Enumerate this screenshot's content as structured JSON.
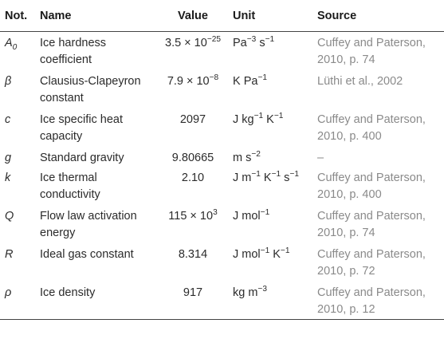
{
  "table": {
    "headers": {
      "notation": "Not.",
      "name": "Name",
      "value": "Value",
      "unit": "Unit",
      "source": "Source"
    },
    "rows": [
      {
        "symbol": {
          "base": "A",
          "sub": "0",
          "sup": ""
        },
        "name": [
          "Ice hardness",
          "coefficient"
        ],
        "value": {
          "base": "3.5 × 10",
          "sup": "−25"
        },
        "unit": [
          [
            "Pa",
            "−3"
          ],
          [
            " s",
            "−1"
          ]
        ],
        "source": [
          "Cuffey and Paterson,",
          "2010, p. 74"
        ]
      },
      {
        "symbol": {
          "base": "β",
          "sub": "",
          "sup": ""
        },
        "name": [
          "Clausius-Clapeyron",
          "constant"
        ],
        "value": {
          "base": "7.9 × 10",
          "sup": "−8"
        },
        "unit": [
          [
            "K Pa",
            "−1"
          ]
        ],
        "source": [
          "Lüthi et al., 2002"
        ]
      },
      {
        "symbol": {
          "base": "c",
          "sub": "",
          "sup": ""
        },
        "name": [
          "Ice specific heat",
          "capacity"
        ],
        "value": {
          "base": "2097",
          "sup": ""
        },
        "unit": [
          [
            "J kg",
            "−1"
          ],
          [
            " K",
            "−1"
          ]
        ],
        "source": [
          "Cuffey and Paterson,",
          "2010, p. 400"
        ]
      },
      {
        "symbol": {
          "base": "g",
          "sub": "",
          "sup": ""
        },
        "name": [
          "Standard gravity"
        ],
        "value": {
          "base": "9.80665",
          "sup": ""
        },
        "unit": [
          [
            "m s",
            "−2"
          ]
        ],
        "source": [
          "–"
        ]
      },
      {
        "symbol": {
          "base": "k",
          "sub": "",
          "sup": ""
        },
        "name": [
          "Ice thermal",
          "conductivity"
        ],
        "value": {
          "base": "2.10",
          "sup": ""
        },
        "unit": [
          [
            "J m",
            "−1"
          ],
          [
            " K",
            "−1"
          ],
          [
            " s",
            "−1"
          ]
        ],
        "source": [
          "Cuffey and Paterson,",
          "2010, p. 400"
        ]
      },
      {
        "symbol": {
          "base": "Q",
          "sub": "",
          "sup": ""
        },
        "name": [
          "Flow law activation",
          "energy"
        ],
        "value": {
          "base": "115 × 10",
          "sup": "3"
        },
        "unit": [
          [
            "J mol",
            "−1"
          ]
        ],
        "source": [
          "Cuffey and Paterson,",
          "2010, p. 74"
        ]
      },
      {
        "symbol": {
          "base": "R",
          "sub": "",
          "sup": ""
        },
        "name": [
          "Ideal gas constant"
        ],
        "value": {
          "base": "8.314",
          "sup": ""
        },
        "unit": [
          [
            "J mol",
            "−1"
          ],
          [
            " K",
            "−1"
          ]
        ],
        "source": [
          "Cuffey and Paterson,",
          "2010, p. 72"
        ]
      },
      {
        "symbol": {
          "base": "ρ",
          "sub": "",
          "sup": ""
        },
        "name": [
          "Ice density"
        ],
        "value": {
          "base": "917",
          "sup": ""
        },
        "unit": [
          [
            "kg m",
            "−3"
          ]
        ],
        "source": [
          "Cuffey and Paterson,",
          "2010, p. 12"
        ]
      }
    ]
  }
}
